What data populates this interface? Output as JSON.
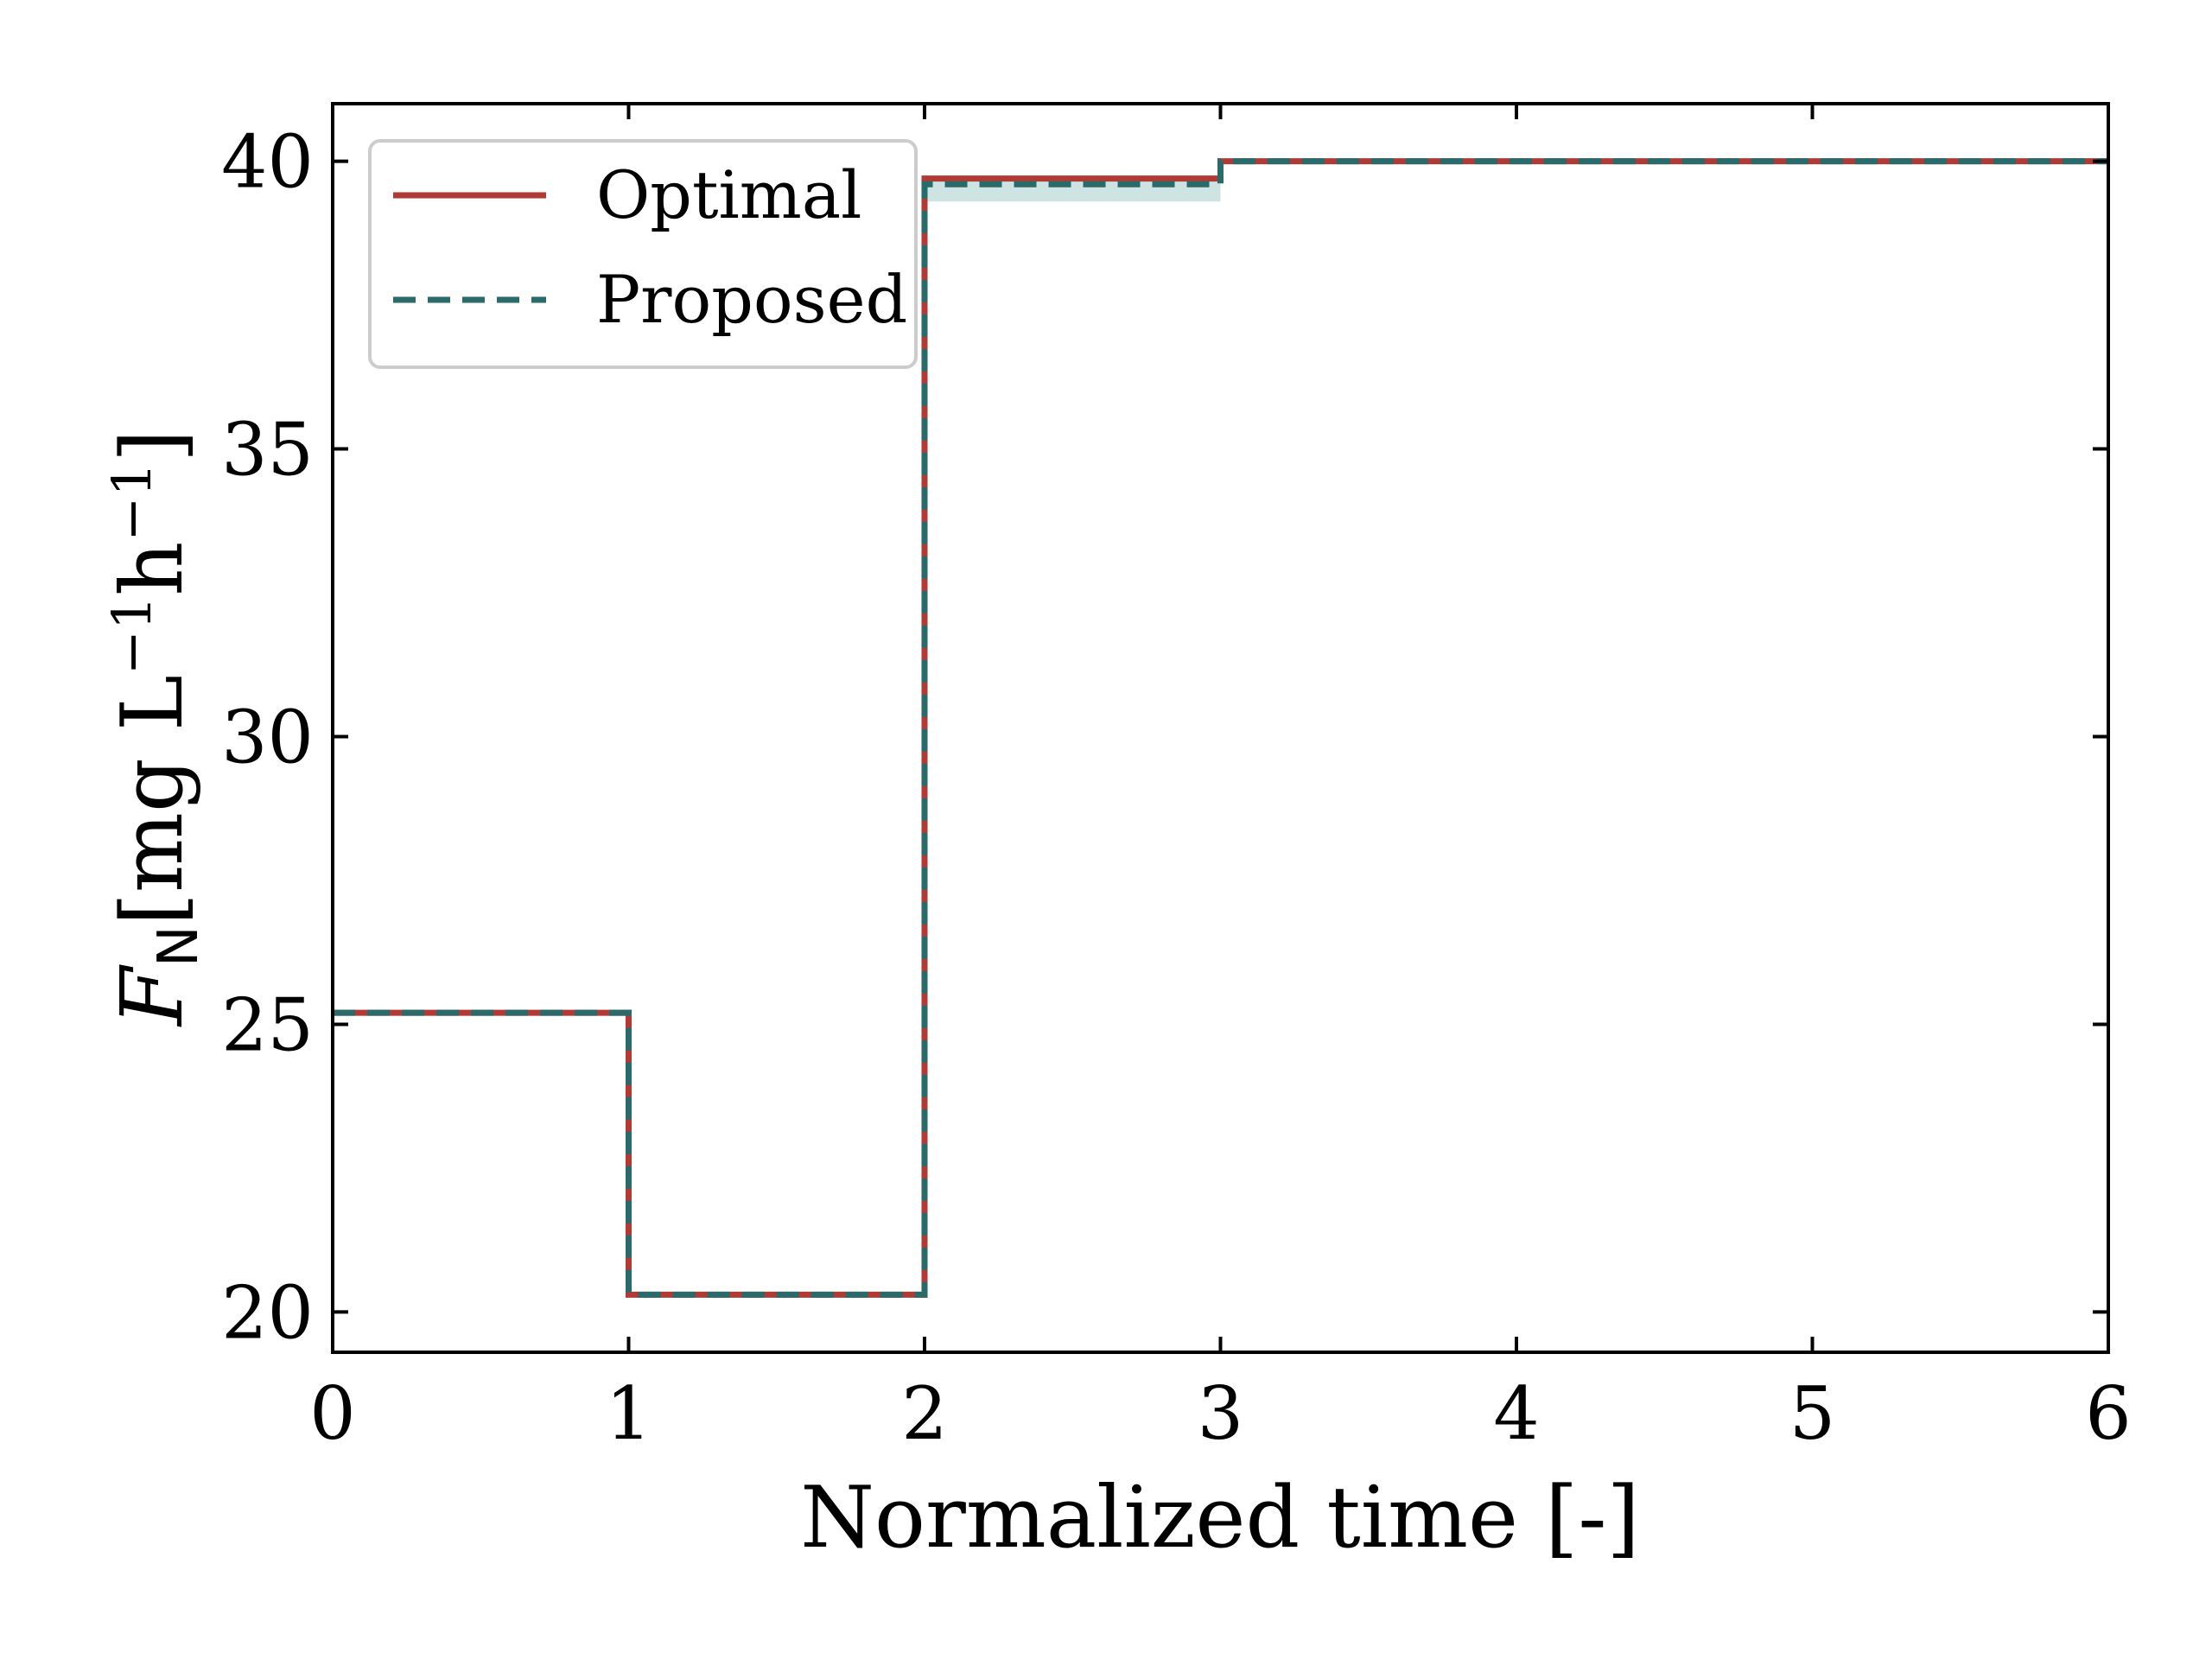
{
  "chart_data": {
    "type": "line",
    "step": "post",
    "xlabel": "Normalized time [-]",
    "ylabel": {
      "symbol": "F",
      "subscript": "N",
      "unit_open": "[mg L",
      "exp1": "−1",
      "unit_mid": "h",
      "exp2": "−1",
      "unit_close": "]"
    },
    "xlim": [
      0,
      6
    ],
    "ylim": [
      19.3,
      41.0
    ],
    "xticks": [
      0,
      1,
      2,
      3,
      4,
      5,
      6
    ],
    "xtick_labels": [
      "0",
      "1",
      "2",
      "3",
      "4",
      "5",
      "6"
    ],
    "yticks": [
      20,
      25,
      30,
      35,
      40
    ],
    "ytick_labels": [
      "20",
      "25",
      "30",
      "35",
      "40"
    ],
    "grid": false,
    "legend_position": "top-left",
    "series": [
      {
        "name": "Optimal",
        "color": "#b03a34",
        "linestyle": "solid",
        "x": [
          0,
          1,
          2,
          3,
          4,
          5,
          6
        ],
        "y": [
          25.2,
          20.3,
          39.7,
          40.0,
          40.0,
          40.0,
          40.0
        ]
      },
      {
        "name": "Proposed",
        "color": "#2a6a6a",
        "linestyle": "dashed",
        "x": [
          0,
          1,
          2,
          3,
          4,
          5,
          6
        ],
        "y": [
          25.2,
          20.3,
          39.6,
          40.0,
          40.0,
          40.0,
          40.0
        ]
      }
    ]
  }
}
